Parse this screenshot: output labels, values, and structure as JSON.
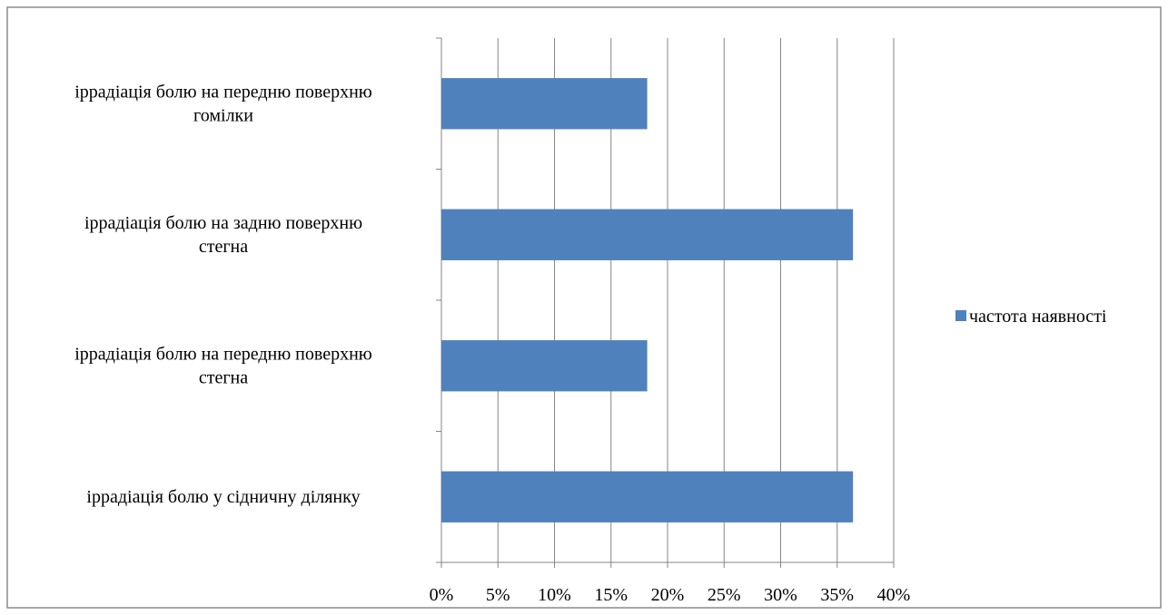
{
  "chart_data": {
    "type": "bar",
    "orientation": "horizontal",
    "categories": [
      [
        "іррадіація болю у сідничну ділянку"
      ],
      [
        "іррадіація болю на передню поверхню",
        "стегна"
      ],
      [
        "іррадіація болю на задню поверхню",
        "стегна"
      ],
      [
        "іррадіація болю на передню поверхню",
        "гомілки"
      ]
    ],
    "series": [
      {
        "name": "частота наявності",
        "values": [
          0.364,
          0.182,
          0.364,
          0.182
        ],
        "color": "#4F81BD"
      }
    ],
    "xlim": [
      0,
      0.4
    ],
    "xticks": [
      {
        "value": 0,
        "label": "0%"
      },
      {
        "value": 0.05,
        "label": "5%"
      },
      {
        "value": 0.1,
        "label": "10%"
      },
      {
        "value": 0.15,
        "label": "15%"
      },
      {
        "value": 0.2,
        "label": "20%"
      },
      {
        "value": 0.25,
        "label": "25%"
      },
      {
        "value": 0.3,
        "label": "30%"
      },
      {
        "value": 0.35,
        "label": "35%"
      },
      {
        "value": 0.4,
        "label": "40%"
      }
    ],
    "grid": "vertical",
    "legend_position": "right",
    "title": "",
    "xlabel": "",
    "ylabel": ""
  }
}
